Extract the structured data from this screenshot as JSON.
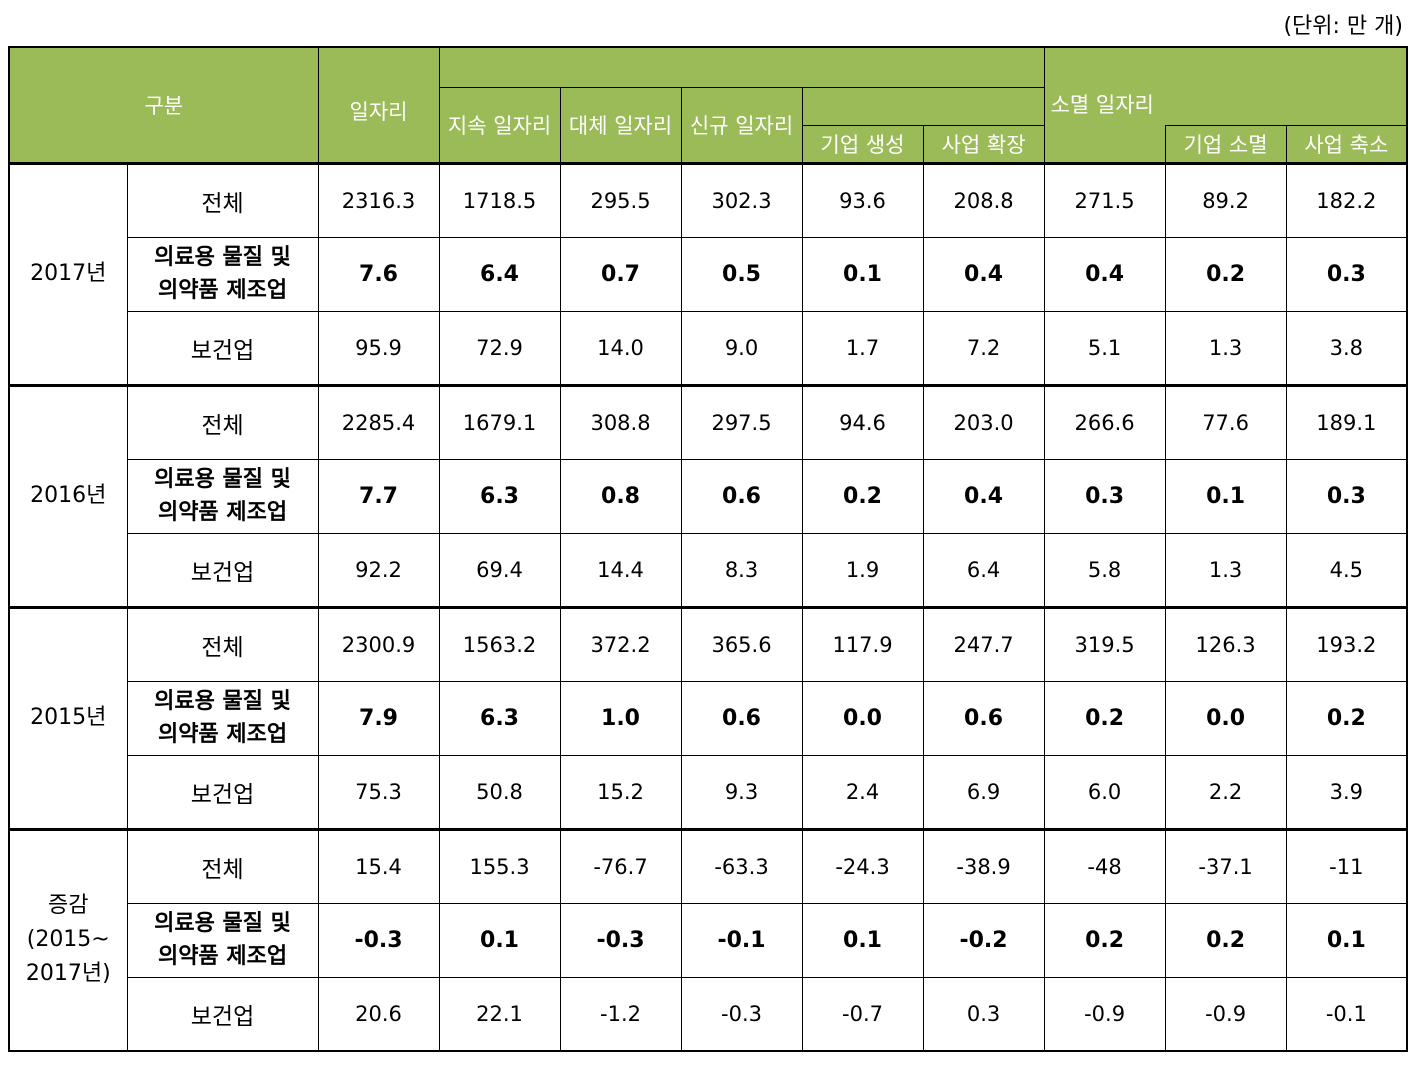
{
  "unit_label": "(단위: 만 개)",
  "header": {
    "category": "구분",
    "jobs": "일자리",
    "continuing": "지속 일자리",
    "replacement": "대체 일자리",
    "new_jobs": "신규 일자리",
    "firm_creation": "기업 생성",
    "business_expansion": "사업 확장",
    "destroyed": "소멸 일자리",
    "firm_closure": "기업 소멸",
    "business_reduction": "사업 축소"
  },
  "groups": [
    {
      "year": "2017년",
      "rows": [
        {
          "label": "전체",
          "values": [
            "2316.3",
            "1718.5",
            "295.5",
            "302.3",
            "93.6",
            "208.8",
            "271.5",
            "89.2",
            "182.2"
          ]
        },
        {
          "label": "의료용 물질 및\n의약품 제조업",
          "values": [
            "7.6",
            "6.4",
            "0.7",
            "0.5",
            "0.1",
            "0.4",
            "0.4",
            "0.2",
            "0.3"
          ]
        },
        {
          "label": "보건업",
          "values": [
            "95.9",
            "72.9",
            "14.0",
            "9.0",
            "1.7",
            "7.2",
            "5.1",
            "1.3",
            "3.8"
          ]
        }
      ]
    },
    {
      "year": "2016년",
      "rows": [
        {
          "label": "전체",
          "values": [
            "2285.4",
            "1679.1",
            "308.8",
            "297.5",
            "94.6",
            "203.0",
            "266.6",
            "77.6",
            "189.1"
          ]
        },
        {
          "label": "의료용 물질 및\n의약품 제조업",
          "values": [
            "7.7",
            "6.3",
            "0.8",
            "0.6",
            "0.2",
            "0.4",
            "0.3",
            "0.1",
            "0.3"
          ]
        },
        {
          "label": "보건업",
          "values": [
            "92.2",
            "69.4",
            "14.4",
            "8.3",
            "1.9",
            "6.4",
            "5.8",
            "1.3",
            "4.5"
          ]
        }
      ]
    },
    {
      "year": "2015년",
      "rows": [
        {
          "label": "전체",
          "values": [
            "2300.9",
            "1563.2",
            "372.2",
            "365.6",
            "117.9",
            "247.7",
            "319.5",
            "126.3",
            "193.2"
          ]
        },
        {
          "label": "의료용 물질 및\n의약품 제조업",
          "values": [
            "7.9",
            "6.3",
            "1.0",
            "0.6",
            "0.0",
            "0.6",
            "0.2",
            "0.0",
            "0.2"
          ]
        },
        {
          "label": "보건업",
          "values": [
            "75.3",
            "50.8",
            "15.2",
            "9.3",
            "2.4",
            "6.9",
            "6.0",
            "2.2",
            "3.9"
          ]
        }
      ]
    },
    {
      "year": "증감\n(2015~\n2017년)",
      "rows": [
        {
          "label": "전체",
          "values": [
            "15.4",
            "155.3",
            "-76.7",
            "-63.3",
            "-24.3",
            "-38.9",
            "-48",
            "-37.1",
            "-11"
          ]
        },
        {
          "label": "의료용 물질 및\n의약품 제조업",
          "values": [
            "-0.3",
            "0.1",
            "-0.3",
            "-0.1",
            "0.1",
            "-0.2",
            "0.2",
            "0.2",
            "0.1"
          ]
        },
        {
          "label": "보건업",
          "values": [
            "20.6",
            "22.1",
            "-1.2",
            "-0.3",
            "-0.7",
            "0.3",
            "-0.9",
            "-0.9",
            "-0.1"
          ]
        }
      ]
    }
  ]
}
